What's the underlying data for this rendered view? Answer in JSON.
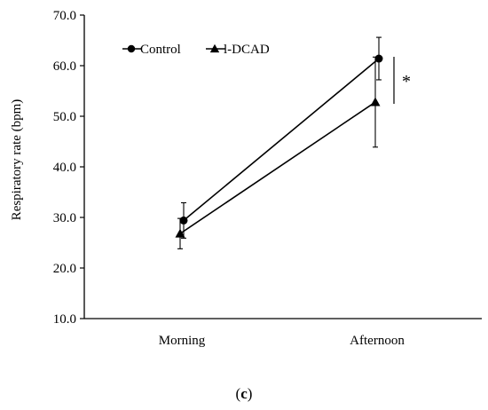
{
  "chart_data": {
    "type": "line",
    "categories": [
      "Morning",
      "Afternoon"
    ],
    "ylabel": "Respiratory rate (bpm)",
    "ylim": [
      10.0,
      70.0
    ],
    "yticks": [
      "10.0",
      "20.0",
      "30.0",
      "40.0",
      "50.0",
      "60.0",
      "70.0"
    ],
    "grid": false,
    "legend_position": "top-left",
    "series": [
      {
        "name": "Control",
        "marker": "circle",
        "values": [
          29.4,
          61.4
        ],
        "errors": [
          3.5,
          4.2
        ]
      },
      {
        "name": "l-DCAD",
        "marker": "triangle",
        "values": [
          26.8,
          52.8
        ],
        "errors": [
          3.0,
          8.9
        ]
      }
    ],
    "annotation": "*",
    "caption": {
      "open": "(",
      "letter": "c",
      "close": ")"
    }
  }
}
